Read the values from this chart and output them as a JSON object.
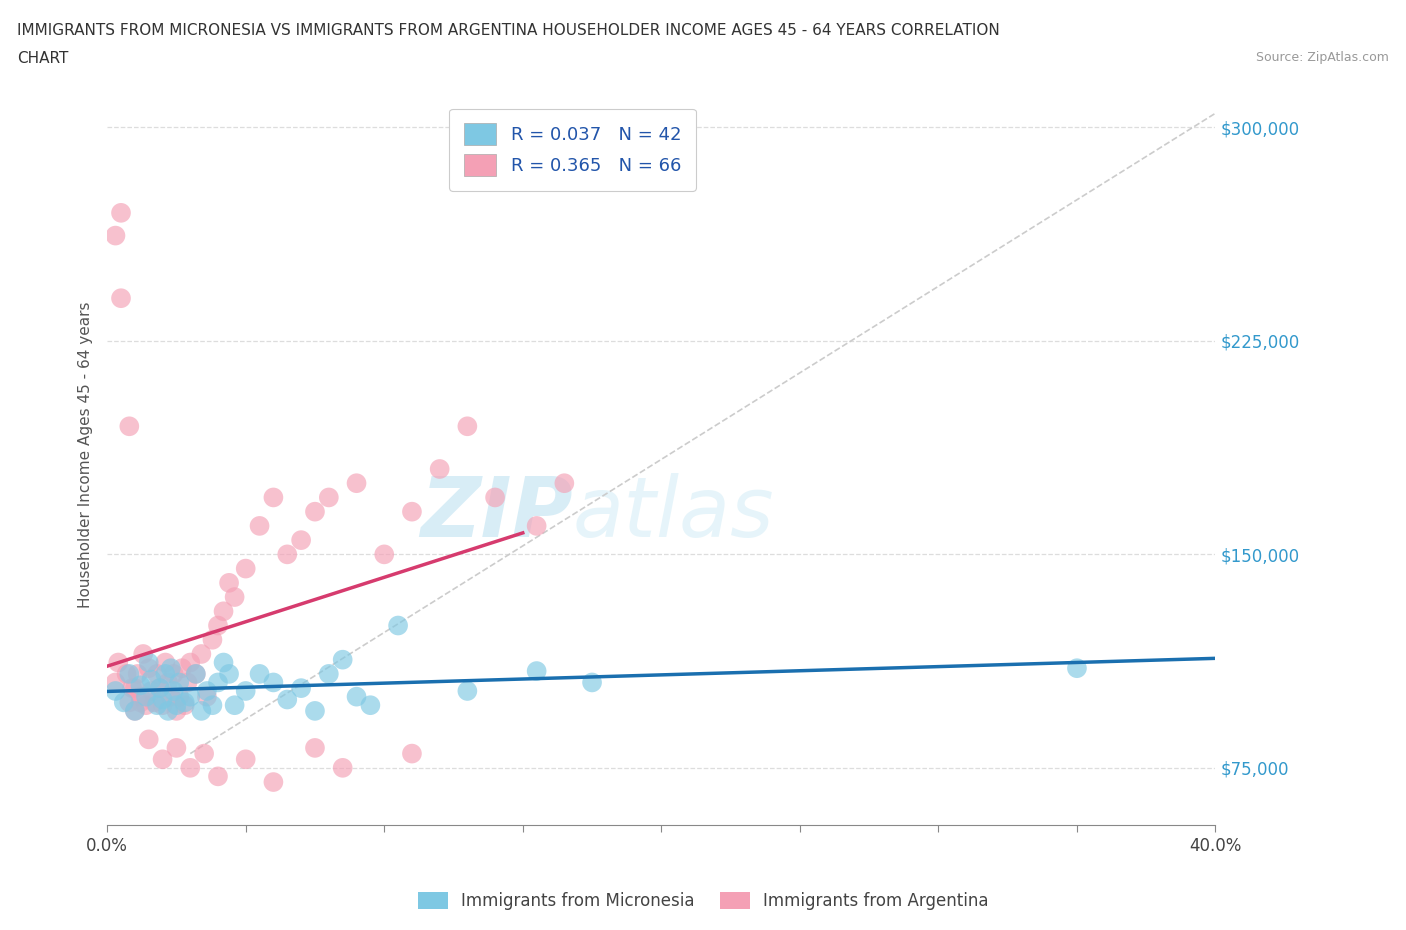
{
  "title_line1": "IMMIGRANTS FROM MICRONESIA VS IMMIGRANTS FROM ARGENTINA HOUSEHOLDER INCOME AGES 45 - 64 YEARS CORRELATION",
  "title_line2": "CHART",
  "source_text": "Source: ZipAtlas.com",
  "ylabel": "Householder Income Ages 45 - 64 years",
  "xlim": [
    0.0,
    0.4
  ],
  "ylim": [
    55000,
    315000
  ],
  "xticks": [
    0.0,
    0.05,
    0.1,
    0.15,
    0.2,
    0.25,
    0.3,
    0.35,
    0.4
  ],
  "yticks": [
    75000,
    150000,
    225000,
    300000
  ],
  "yticklabels": [
    "$75,000",
    "$150,000",
    "$225,000",
    "$300,000"
  ],
  "watermark_zip": "ZIP",
  "watermark_atlas": "atlas",
  "legend_R1": "R = 0.037",
  "legend_N1": "N = 42",
  "legend_R2": "R = 0.365",
  "legend_N2": "N = 66",
  "color_micronesia": "#7ec8e3",
  "color_argentina": "#f4a0b5",
  "color_trend_micronesia": "#1a6faf",
  "color_trend_argentina": "#d63b6e",
  "color_diag": "#cccccc",
  "micronesia_x": [
    0.003,
    0.006,
    0.008,
    0.01,
    0.012,
    0.014,
    0.015,
    0.016,
    0.018,
    0.019,
    0.02,
    0.021,
    0.022,
    0.023,
    0.024,
    0.025,
    0.026,
    0.028,
    0.03,
    0.032,
    0.034,
    0.036,
    0.038,
    0.04,
    0.042,
    0.044,
    0.046,
    0.05,
    0.055,
    0.06,
    0.065,
    0.07,
    0.075,
    0.08,
    0.085,
    0.09,
    0.095,
    0.105,
    0.13,
    0.155,
    0.175,
    0.35
  ],
  "micronesia_y": [
    102000,
    98000,
    108000,
    95000,
    104000,
    100000,
    112000,
    106000,
    97000,
    103000,
    99000,
    108000,
    95000,
    110000,
    102000,
    97000,
    105000,
    98000,
    100000,
    108000,
    95000,
    102000,
    97000,
    105000,
    112000,
    108000,
    97000,
    102000,
    108000,
    105000,
    99000,
    103000,
    95000,
    108000,
    113000,
    100000,
    97000,
    125000,
    102000,
    109000,
    105000,
    110000
  ],
  "argentina_x": [
    0.003,
    0.004,
    0.005,
    0.007,
    0.008,
    0.009,
    0.01,
    0.011,
    0.012,
    0.013,
    0.014,
    0.015,
    0.016,
    0.017,
    0.018,
    0.019,
    0.02,
    0.021,
    0.022,
    0.023,
    0.024,
    0.025,
    0.026,
    0.027,
    0.028,
    0.029,
    0.03,
    0.032,
    0.034,
    0.036,
    0.038,
    0.04,
    0.042,
    0.044,
    0.046,
    0.05,
    0.055,
    0.06,
    0.065,
    0.07,
    0.075,
    0.08,
    0.09,
    0.1,
    0.11,
    0.12,
    0.13,
    0.14,
    0.155,
    0.165,
    0.003,
    0.005,
    0.008,
    0.01,
    0.012,
    0.015,
    0.02,
    0.025,
    0.03,
    0.035,
    0.04,
    0.05,
    0.06,
    0.075,
    0.085,
    0.11
  ],
  "argentina_y": [
    105000,
    112000,
    270000,
    108000,
    98000,
    103000,
    95000,
    108000,
    100000,
    115000,
    97000,
    110000,
    102000,
    98000,
    108000,
    103000,
    97000,
    112000,
    105000,
    100000,
    108000,
    95000,
    100000,
    110000,
    97000,
    105000,
    112000,
    108000,
    115000,
    100000,
    120000,
    125000,
    130000,
    140000,
    135000,
    145000,
    160000,
    170000,
    150000,
    155000,
    165000,
    170000,
    175000,
    150000,
    165000,
    180000,
    195000,
    170000,
    160000,
    175000,
    262000,
    240000,
    195000,
    103000,
    98000,
    85000,
    78000,
    82000,
    75000,
    80000,
    72000,
    78000,
    70000,
    82000,
    75000,
    80000
  ]
}
